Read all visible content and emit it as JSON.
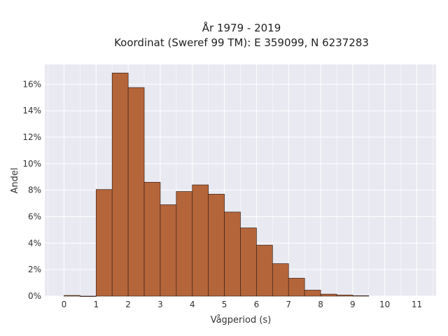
{
  "chart_data": {
    "type": "bar",
    "title_lines": [
      "År 1979 - 2019",
      "Koordinat (Sweref 99 TM): E 359099, N 6237283"
    ],
    "xlabel": "Vågperiod (s)",
    "ylabel": "Andel",
    "bin_width": 0.5,
    "bins": [
      {
        "start": 0.0,
        "value": 0.05
      },
      {
        "start": 0.5,
        "value": 0.0
      },
      {
        "start": 1.0,
        "value": 8.05
      },
      {
        "start": 1.5,
        "value": 16.85
      },
      {
        "start": 2.0,
        "value": 15.75
      },
      {
        "start": 2.5,
        "value": 8.6
      },
      {
        "start": 3.0,
        "value": 6.9
      },
      {
        "start": 3.5,
        "value": 7.9
      },
      {
        "start": 4.0,
        "value": 8.4
      },
      {
        "start": 4.5,
        "value": 7.7
      },
      {
        "start": 5.0,
        "value": 6.35
      },
      {
        "start": 5.5,
        "value": 5.15
      },
      {
        "start": 6.0,
        "value": 3.85
      },
      {
        "start": 6.5,
        "value": 2.45
      },
      {
        "start": 7.0,
        "value": 1.35
      },
      {
        "start": 7.5,
        "value": 0.45
      },
      {
        "start": 8.0,
        "value": 0.15
      },
      {
        "start": 8.5,
        "value": 0.08
      },
      {
        "start": 9.0,
        "value": 0.03
      }
    ],
    "xticks": [
      0,
      1,
      2,
      3,
      4,
      5,
      6,
      7,
      8,
      9,
      10,
      11
    ],
    "yticks": [
      0,
      2,
      4,
      6,
      8,
      10,
      12,
      14,
      16
    ],
    "ytick_suffix": "%",
    "xlim": [
      -0.6,
      11.6
    ],
    "ylim": [
      0,
      17.5
    ],
    "grid": true,
    "bar_color": "#b5653a",
    "bar_edge_color": "#3a2418",
    "background_color": "#e9e9f1"
  }
}
